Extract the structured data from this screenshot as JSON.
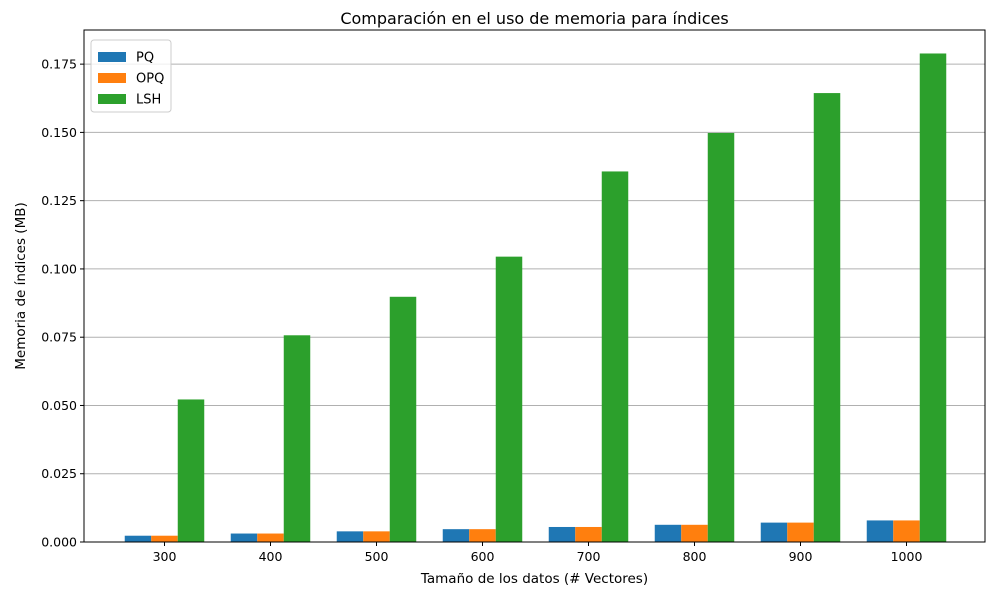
{
  "chart_data": {
    "type": "bar",
    "title": "Comparación en el uso de memoria para índices",
    "xlabel": "Tamaño de los datos (# Vectores)",
    "ylabel": "Memoria de índices (MB)",
    "categories": [
      "300",
      "400",
      "500",
      "600",
      "700",
      "800",
      "900",
      "1000"
    ],
    "series": [
      {
        "name": "PQ",
        "color": "#1f77b4",
        "values": [
          0.0023,
          0.0031,
          0.0039,
          0.0047,
          0.0055,
          0.0063,
          0.0071,
          0.0079
        ]
      },
      {
        "name": "OPQ",
        "color": "#ff7f0e",
        "values": [
          0.0023,
          0.0031,
          0.0039,
          0.0047,
          0.0055,
          0.0063,
          0.0071,
          0.0079
        ]
      },
      {
        "name": "LSH",
        "color": "#2ca02c",
        "values": [
          0.0522,
          0.0757,
          0.0898,
          0.1045,
          0.1357,
          0.1498,
          0.1644,
          0.1789
        ]
      }
    ],
    "ylim": [
      0,
      0.1875
    ],
    "yticks": [
      "0.000",
      "0.025",
      "0.050",
      "0.075",
      "0.100",
      "0.125",
      "0.150",
      "0.175"
    ],
    "grid": "horizontal",
    "legend_position": "top-left"
  }
}
